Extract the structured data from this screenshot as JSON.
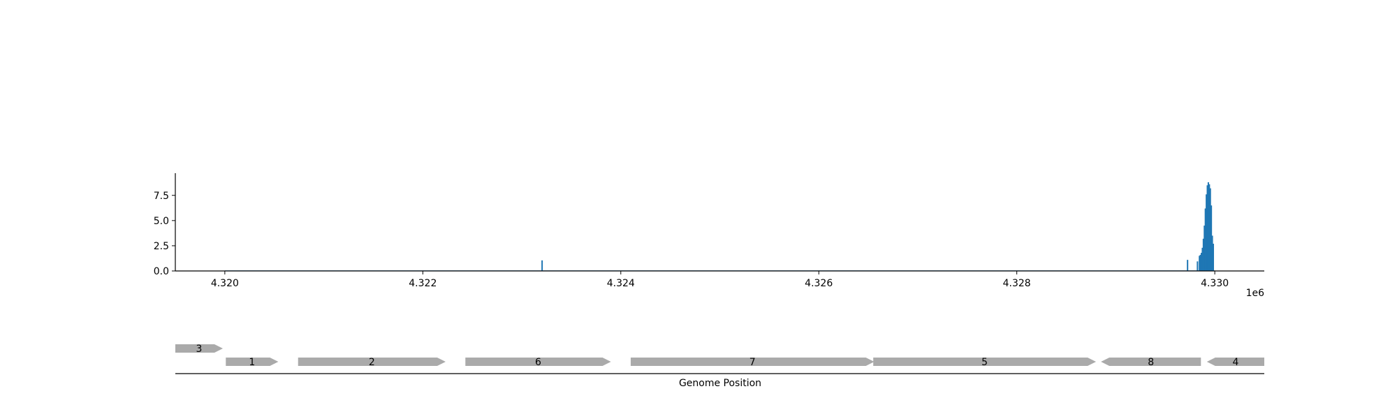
{
  "chart_data": [
    {
      "type": "bar",
      "x_start": 4320000,
      "bin_width": 10,
      "baseline_value": 0.05,
      "x_range": [
        4319500,
        4330500
      ],
      "ylim": [
        0,
        9.7
      ],
      "x_ticks": [
        4320000,
        4322000,
        4324000,
        4326000,
        4328000,
        4330000
      ],
      "x_tick_labels": [
        "4.320",
        "4.322",
        "4.324",
        "4.326",
        "4.328",
        "4.330"
      ],
      "x_offset_label": "1e6",
      "y_ticks": [
        0.0,
        2.5,
        5.0,
        7.5
      ],
      "y_tick_labels": [
        "0.0",
        "2.5",
        "5.0",
        "7.5"
      ],
      "grid": false,
      "color": "#1f77b4",
      "peaks": [
        {
          "x": 4323200,
          "value": 1.05
        },
        {
          "x": 4329720,
          "value": 1.1
        },
        {
          "x": 4329820,
          "value": 0.95
        },
        {
          "x": 4329840,
          "value": 1.5
        },
        {
          "x": 4329850,
          "value": 1.6
        },
        {
          "x": 4329860,
          "value": 1.8
        },
        {
          "x": 4329870,
          "value": 2.3
        },
        {
          "x": 4329880,
          "value": 3.2
        },
        {
          "x": 4329890,
          "value": 4.5
        },
        {
          "x": 4329900,
          "value": 6.2
        },
        {
          "x": 4329910,
          "value": 7.6
        },
        {
          "x": 4329920,
          "value": 8.5
        },
        {
          "x": 4329930,
          "value": 8.8
        },
        {
          "x": 4329940,
          "value": 8.6
        },
        {
          "x": 4329950,
          "value": 8.2
        },
        {
          "x": 4329960,
          "value": 6.5
        },
        {
          "x": 4329970,
          "value": 3.5
        },
        {
          "x": 4329980,
          "value": 2.7
        }
      ]
    },
    {
      "type": "gene-track",
      "xlabel": "Genome Position",
      "color": "#aaaaaa",
      "genes": [
        {
          "label": "3",
          "start": 4319500,
          "end": 4319980,
          "strand": "+",
          "row": 2
        },
        {
          "label": "1",
          "start": 4320010,
          "end": 4320540,
          "strand": "+",
          "row": 1
        },
        {
          "label": "2",
          "start": 4320740,
          "end": 4322230,
          "strand": "+",
          "row": 1
        },
        {
          "label": "6",
          "start": 4322430,
          "end": 4323900,
          "strand": "+",
          "row": 1
        },
        {
          "label": "7",
          "start": 4324100,
          "end": 4326560,
          "strand": "+",
          "row": 1
        },
        {
          "label": "5",
          "start": 4326550,
          "end": 4328800,
          "strand": "+",
          "row": 1
        },
        {
          "label": "8",
          "start": 4328850,
          "end": 4329860,
          "strand": "-",
          "row": 1
        },
        {
          "label": "4",
          "start": 4329920,
          "end": 4330500,
          "strand": "-",
          "row": 1
        }
      ]
    }
  ]
}
